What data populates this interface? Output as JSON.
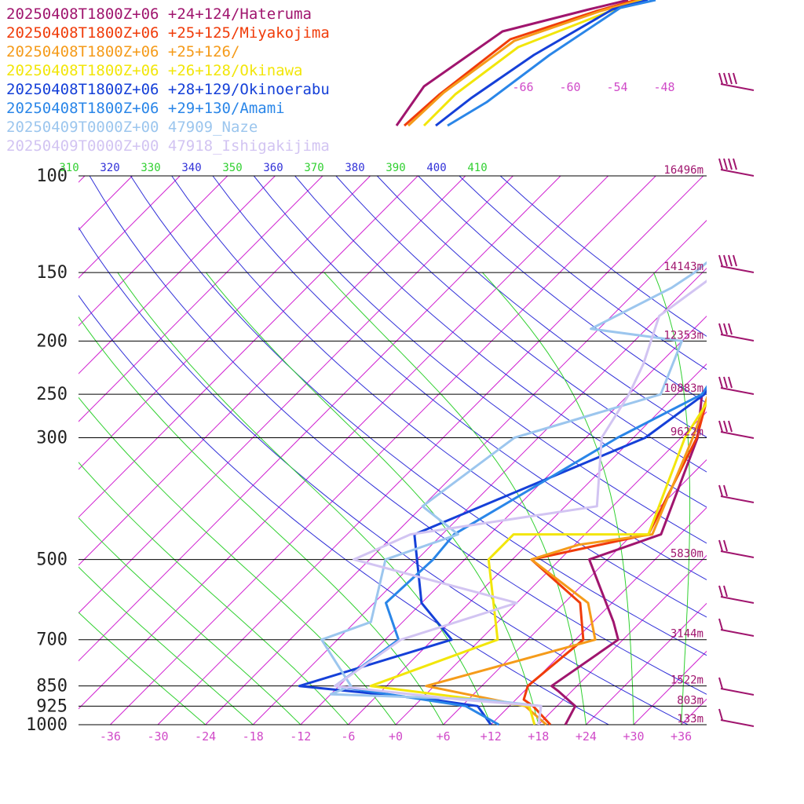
{
  "chart_data": {
    "type": "line",
    "title": "",
    "xlabel": "",
    "ylabel": "",
    "pressure_ticks": [
      "100",
      "150",
      "200",
      "250",
      "300",
      "500",
      "700",
      "850",
      "925",
      "1000"
    ],
    "pressure_values": [
      100,
      150,
      200,
      250,
      300,
      500,
      700,
      850,
      925,
      1000
    ],
    "height_labels": [
      {
        "p": 100,
        "label": "16496m"
      },
      {
        "p": 150,
        "label": "14143m"
      },
      {
        "p": 200,
        "label": "12353m"
      },
      {
        "p": 250,
        "label": "10883m"
      },
      {
        "p": 300,
        "label": "9622m"
      },
      {
        "p": 500,
        "label": "5830m"
      },
      {
        "p": 700,
        "label": "3144m"
      },
      {
        "p": 850,
        "label": "1522m"
      },
      {
        "p": 925,
        "label": "803m"
      },
      {
        "p": 1000,
        "label": "133m"
      }
    ],
    "temperature_ticks": [
      "-36",
      "-30",
      "-24",
      "-18",
      "-12",
      "-6",
      "+0",
      "+6",
      "+12",
      "+18",
      "+24",
      "+30",
      "+36"
    ],
    "temperature_values": [
      -36,
      -30,
      -24,
      -18,
      -12,
      -6,
      0,
      6,
      12,
      18,
      24,
      30,
      36
    ],
    "upper_temperature_ticks": [
      "-66",
      "-60",
      "-54",
      "-48"
    ],
    "theta_ticks": [
      "310",
      "320",
      "330",
      "340",
      "350",
      "360",
      "370",
      "380",
      "390",
      "400",
      "410"
    ],
    "xlim": [
      -40,
      40
    ],
    "ylim": [
      1000,
      100
    ],
    "grid": true,
    "legend_position": "top-left",
    "series": [
      {
        "name": "20250408T1800Z+06 +24+124/Hateruma",
        "color": "#a0156e",
        "points": [
          [
            -13.8,
            65
          ],
          [
            -8.2,
            84
          ],
          [
            -2.4,
            140
          ],
          [
            -5.6,
            160
          ],
          [
            -4.3,
            200
          ],
          [
            -2.8,
            250
          ],
          [
            2.1,
            300
          ],
          [
            9.6,
            450
          ],
          [
            3.7,
            500
          ],
          [
            14.6,
            650
          ],
          [
            17.4,
            700
          ],
          [
            14.8,
            850
          ],
          [
            16.4,
            870
          ],
          [
            20.3,
            925
          ],
          [
            21.4,
            1000
          ]
        ]
      },
      {
        "name": "20250408T1800Z+06 +25+125/Miyakojima",
        "color": "#f03c0a",
        "points": [
          [
            -12.5,
            70
          ],
          [
            -9.0,
            88
          ],
          [
            -6.0,
            150
          ],
          [
            -3.5,
            200
          ],
          [
            -2.0,
            250
          ],
          [
            2.0,
            300
          ],
          [
            8.0,
            450
          ],
          [
            -3.6,
            500
          ],
          [
            8.0,
            600
          ],
          [
            13.0,
            700
          ],
          [
            11.8,
            850
          ],
          [
            13.0,
            900
          ],
          [
            15.0,
            925
          ],
          [
            19.5,
            1000
          ]
        ]
      },
      {
        "name": "20250408T1800Z+06 +25+126/",
        "color": "#f59b1a",
        "points": [
          [
            -12.0,
            70
          ],
          [
            -8.5,
            90
          ],
          [
            -5.8,
            150
          ],
          [
            -3.6,
            200
          ],
          [
            -2.0,
            250
          ],
          [
            1.5,
            300
          ],
          [
            8.5,
            450
          ],
          [
            0.5,
            470
          ],
          [
            -3.6,
            500
          ],
          [
            9.0,
            600
          ],
          [
            14.5,
            700
          ],
          [
            -1.0,
            850
          ],
          [
            14.0,
            925
          ],
          [
            19.0,
            1000
          ]
        ]
      },
      {
        "name": "20250408T1800Z+06 +26+128/Okinawa",
        "color": "#f2e60a",
        "points": [
          [
            -11.5,
            72
          ],
          [
            -6.8,
            100
          ],
          [
            -4.8,
            150
          ],
          [
            -3.0,
            200
          ],
          [
            -1.5,
            250
          ],
          [
            0.5,
            300
          ],
          [
            8.0,
            450
          ],
          [
            -9.0,
            450
          ],
          [
            -9.0,
            500
          ],
          [
            2.2,
            700
          ],
          [
            -8.0,
            850
          ],
          [
            14.5,
            925
          ],
          [
            17.5,
            1000
          ]
        ]
      },
      {
        "name": "20250408T1800Z+06 +28+129/Okinoerabu",
        "color": "#1540d8",
        "points": [
          [
            -10.5,
            70
          ],
          [
            -6.0,
            100
          ],
          [
            -2.0,
            150
          ],
          [
            -4.5,
            200
          ],
          [
            -2.5,
            250
          ],
          [
            -4.5,
            300
          ],
          [
            -21.5,
            450
          ],
          [
            -12.0,
            600
          ],
          [
            -3.6,
            700
          ],
          [
            -17.0,
            850
          ],
          [
            1.5,
            900
          ],
          [
            8.0,
            925
          ],
          [
            12.0,
            1000
          ]
        ]
      },
      {
        "name": "20250408T1800Z+06 +29+130/Amami",
        "color": "#2a86e8",
        "points": [
          [
            -8.5,
            70
          ],
          [
            -3.8,
            100
          ],
          [
            -2.0,
            150
          ],
          [
            -5.0,
            200
          ],
          [
            -2.8,
            250
          ],
          [
            -8.0,
            300
          ],
          [
            -16.5,
            450
          ],
          [
            -16.0,
            500
          ],
          [
            -16.5,
            600
          ],
          [
            -10.3,
            700
          ],
          [
            -12.5,
            850
          ],
          [
            6.5,
            925
          ],
          [
            13.0,
            1000
          ]
        ]
      },
      {
        "name": "20250409T0000Z+00 47909_Naze",
        "color": "#9cc6ee",
        "points": [
          [
            -15.0,
            100
          ],
          [
            -18.0,
            130
          ],
          [
            -19.0,
            150
          ],
          [
            -20.0,
            160
          ],
          [
            -25.0,
            190
          ],
          [
            -12.0,
            200
          ],
          [
            -8.0,
            250
          ],
          [
            -21.0,
            300
          ],
          [
            -24.0,
            400
          ],
          [
            -16.0,
            450
          ],
          [
            -22.0,
            500
          ],
          [
            -16.0,
            650
          ],
          [
            -20.0,
            700
          ],
          [
            -10.5,
            850
          ],
          [
            -12.0,
            880
          ],
          [
            8.0,
            900
          ],
          [
            16.0,
            925
          ],
          [
            18.0,
            1000
          ]
        ]
      },
      {
        "name": "20250409T0000Z+00 47918_Ishigakijima",
        "color": "#d2c4f2",
        "points": [
          [
            -11.0,
            100
          ],
          [
            -14.0,
            130
          ],
          [
            -16.0,
            150
          ],
          [
            -18.0,
            180
          ],
          [
            -14.0,
            220
          ],
          [
            -12.0,
            250
          ],
          [
            -10.0,
            300
          ],
          [
            -2.0,
            400
          ],
          [
            -22.0,
            450
          ],
          [
            -26.0,
            500
          ],
          [
            0.0,
            600
          ],
          [
            -10.0,
            700
          ],
          [
            -12.5,
            850
          ],
          [
            5.0,
            900
          ],
          [
            16.0,
            925
          ],
          [
            18.0,
            1000
          ]
        ]
      }
    ]
  },
  "legend": [
    {
      "text": "20250408T1800Z+06 +24+124/Hateruma",
      "color": "#a0156e"
    },
    {
      "text": "20250408T1800Z+06 +25+125/Miyakojima",
      "color": "#f03c0a"
    },
    {
      "text": "20250408T1800Z+06 +25+126/",
      "color": "#f59b1a"
    },
    {
      "text": "20250408T1800Z+06 +26+128/Okinawa",
      "color": "#f2e60a"
    },
    {
      "text": "20250408T1800Z+06 +28+129/Okinoerabu",
      "color": "#1540d8"
    },
    {
      "text": "20250408T1800Z+06 +29+130/Amami",
      "color": "#2a86e8"
    },
    {
      "text": "20250409T0000Z+00 47909_Naze",
      "color": "#9cc6ee"
    },
    {
      "text": "20250409T0000Z+00 47918_Ishigakijima",
      "color": "#d2c4f2"
    }
  ],
  "colors": {
    "isotherm": "#d020d0",
    "dry_adiabat": "#3030d8",
    "moist_adiabat": "#30d030",
    "isobar": "#000000",
    "height_label": "#a0156e",
    "temp_label": "#d04ac8",
    "wind_barb": "#a0156e"
  }
}
